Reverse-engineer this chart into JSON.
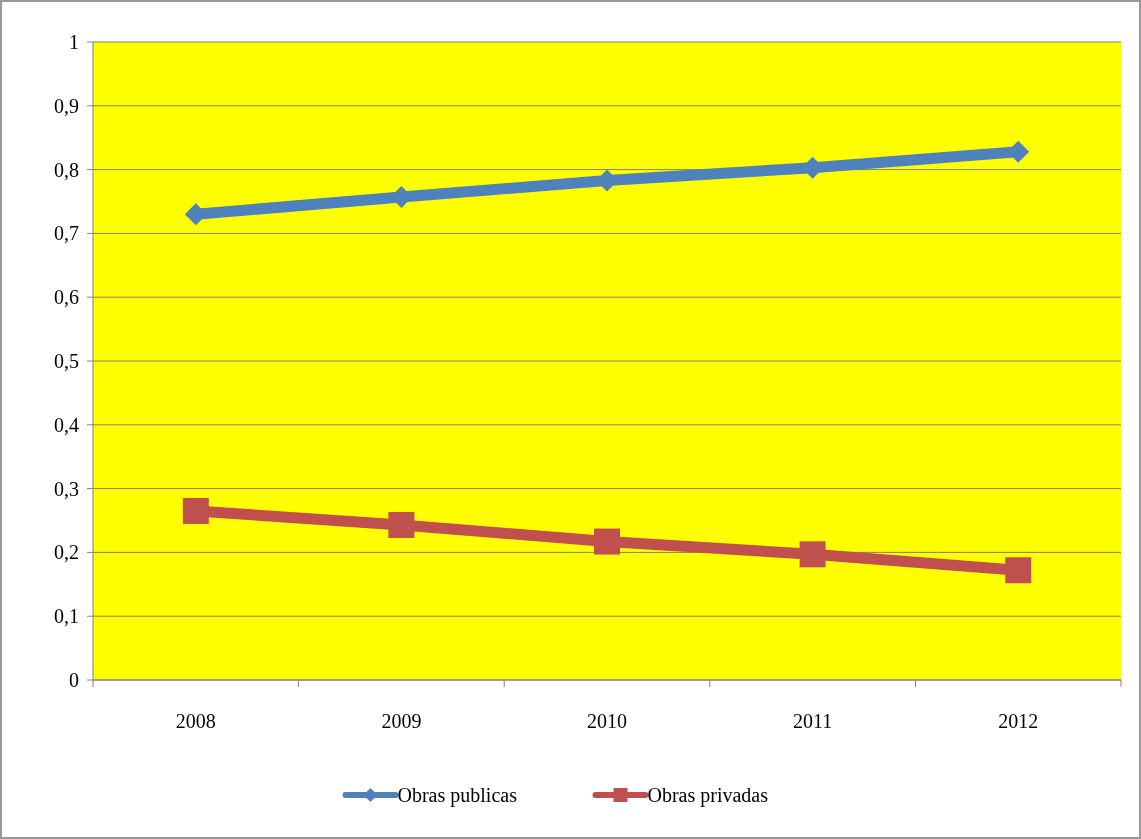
{
  "chart_data": {
    "type": "line",
    "categories": [
      "2008",
      "2009",
      "2010",
      "2011",
      "2012"
    ],
    "series": [
      {
        "name": "Obras publicas",
        "color": "#4f81bd",
        "marker": "diamond",
        "values": [
          0.73,
          0.757,
          0.783,
          0.803,
          0.828
        ]
      },
      {
        "name": "Obras privadas",
        "color": "#c0504d",
        "marker": "square",
        "values": [
          0.265,
          0.243,
          0.217,
          0.197,
          0.172
        ]
      }
    ],
    "ylim": [
      0,
      1
    ],
    "yticks": [
      0,
      {
        "value": 0.1,
        "label": "0,1"
      },
      {
        "value": 0.2,
        "label": "0,2"
      },
      {
        "value": 0.3,
        "label": "0,3"
      },
      {
        "value": 0.4,
        "label": "0,4"
      },
      {
        "value": 0.5,
        "label": "0,5"
      },
      {
        "value": 0.6,
        "label": "0,6"
      },
      {
        "value": 0.7,
        "label": "0,7"
      },
      {
        "value": 0.8,
        "label": "0,8"
      },
      {
        "value": 0.9,
        "label": "0,9"
      },
      1
    ],
    "grid": "y",
    "legend": "bottom",
    "line_style": "solid"
  }
}
